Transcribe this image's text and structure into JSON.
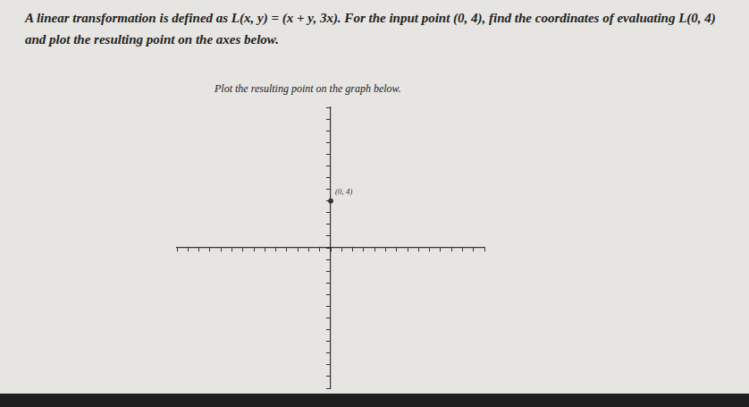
{
  "header": {
    "problem": "A linear transformation is defined as L(x, y) = (x + y, 3x). For the input point (0, 4), find the coordinates of evaluating L(0, 4) and plot the resulting point on the axes below.",
    "instruction": "Plot the resulting point on the graph below."
  },
  "chart_data": {
    "type": "scatter",
    "x": [
      0
    ],
    "values": [
      4
    ],
    "color": "#333333",
    "annotations": [
      {
        "x": 0.4,
        "y": 4.4,
        "text": "(0, 4)"
      }
    ],
    "xlim": [
      -14,
      14
    ],
    "xticks": [
      -14,
      -13,
      -12,
      -11,
      -10,
      -9,
      -8,
      -7,
      -6,
      -5,
      -4,
      -3,
      -2,
      -1,
      0,
      1,
      2,
      3,
      4,
      5,
      6,
      7,
      8,
      9,
      10,
      11,
      12,
      13,
      14
    ],
    "ylim": [
      -12,
      12
    ],
    "yticks": [
      -12,
      -11,
      -10,
      -9,
      -8,
      -7,
      -6,
      -5,
      -4,
      -3,
      -2,
      -1,
      0,
      1,
      2,
      3,
      4,
      5,
      6,
      7,
      8,
      9,
      10,
      11,
      12
    ],
    "grid": false,
    "tick_labels": false
  }
}
